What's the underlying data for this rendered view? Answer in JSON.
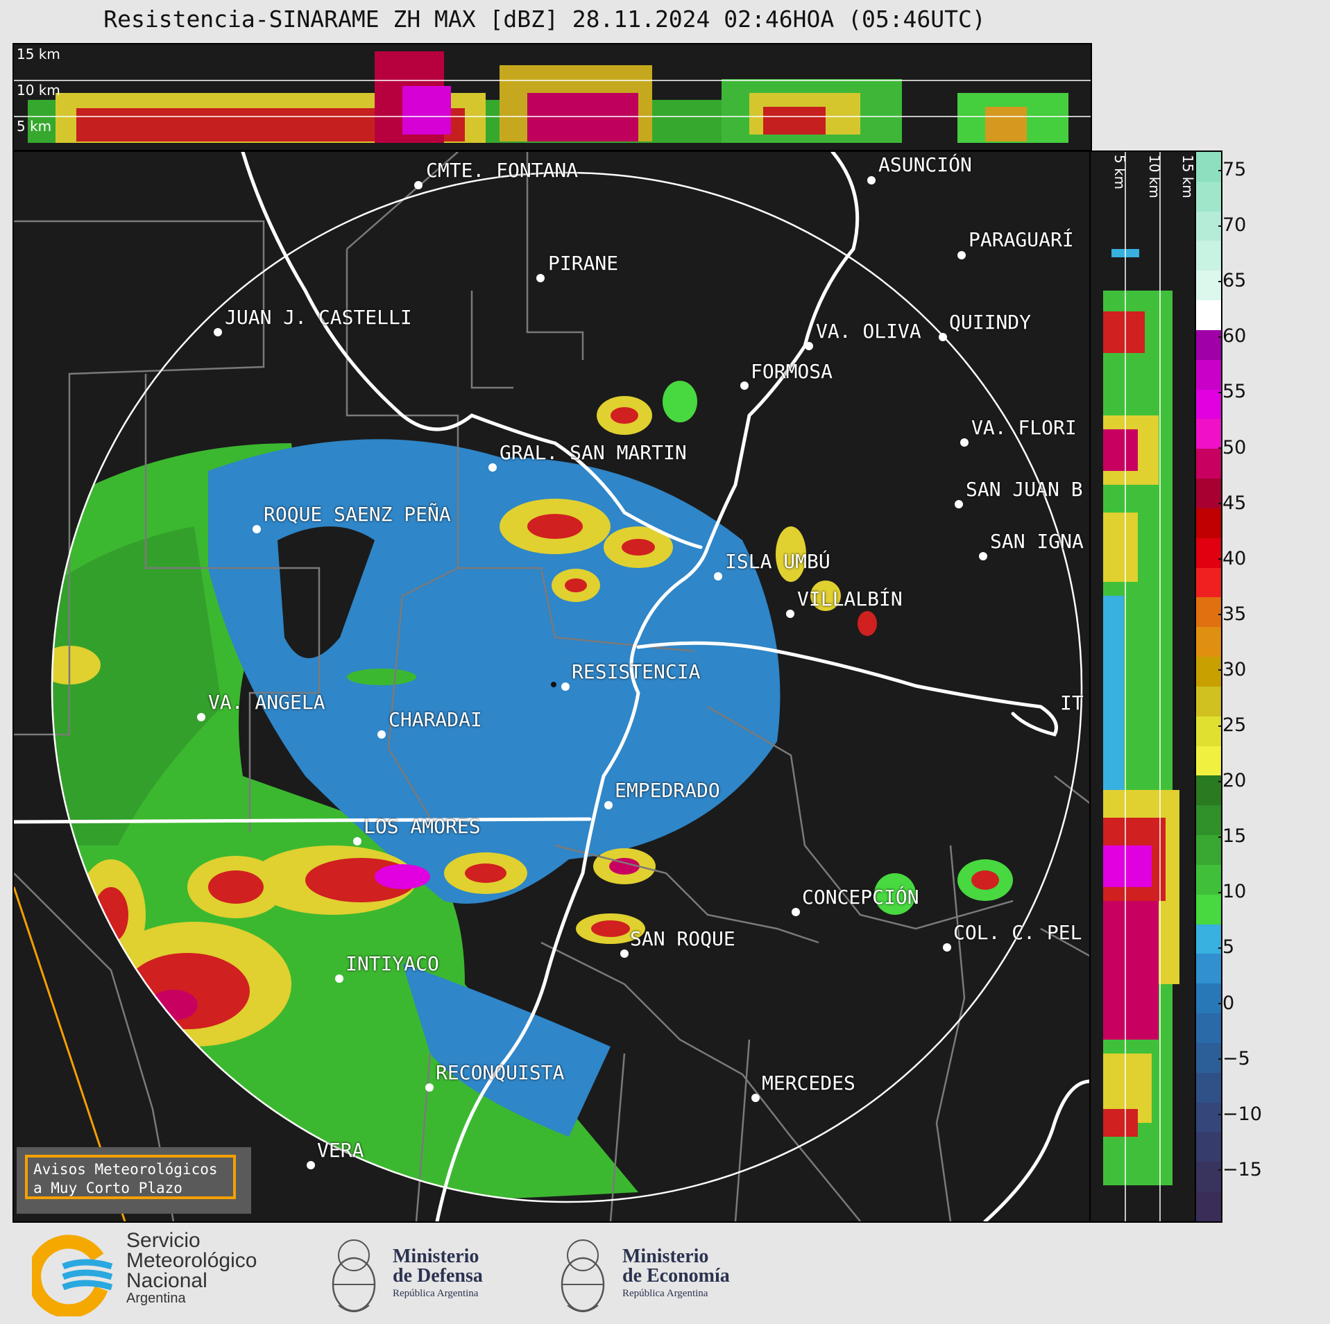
{
  "title": "Resistencia-SINARAME ZH MAX [dBZ] 28.11.2024 02:46HOA (05:46UTC)",
  "xsec_top_labels": [
    "15 km",
    "10 km",
    "5 km"
  ],
  "xsec_right_labels": [
    "5 km",
    "10 km",
    "15 km"
  ],
  "cities": [
    {
      "id": "cmte-fontana",
      "name": "CMTE. FONTANA"
    },
    {
      "id": "asuncion",
      "name": "ASUNCIÓN"
    },
    {
      "id": "paraguari",
      "name": "PARAGUARÍ"
    },
    {
      "id": "pirane",
      "name": "PIRANE"
    },
    {
      "id": "juan-castelli",
      "name": "JUAN J. CASTELLI"
    },
    {
      "id": "va-oliva",
      "name": "VA. OLIVA"
    },
    {
      "id": "quiindy",
      "name": "QUIINDY"
    },
    {
      "id": "formosa",
      "name": "FORMOSA"
    },
    {
      "id": "va-florida",
      "name": "VA. FLORI"
    },
    {
      "id": "gral-san-martin",
      "name": "GRAL. SAN MARTIN"
    },
    {
      "id": "san-juan",
      "name": "SAN JUAN B"
    },
    {
      "id": "roque-saenz-pena",
      "name": "ROQUE SAENZ PEÑA"
    },
    {
      "id": "san-ignacio",
      "name": "SAN IGNA"
    },
    {
      "id": "isla-umbu",
      "name": "ISLA UMBÚ"
    },
    {
      "id": "villalbin",
      "name": "VILLALBÍN"
    },
    {
      "id": "resistencia",
      "name": "RESISTENCIA"
    },
    {
      "id": "ita",
      "name": "IT"
    },
    {
      "id": "va-angela",
      "name": "VA. ANGELA"
    },
    {
      "id": "charadai",
      "name": "CHARADAI"
    },
    {
      "id": "empedrado",
      "name": "EMPEDRADO"
    },
    {
      "id": "los-amores",
      "name": "LOS AMORES"
    },
    {
      "id": "concepcion",
      "name": "CONCEPCIÓN"
    },
    {
      "id": "san-roque",
      "name": "SAN ROQUE"
    },
    {
      "id": "col-pellegrini",
      "name": "COL. C. PEL"
    },
    {
      "id": "intiyaco",
      "name": "INTIYACO"
    },
    {
      "id": "reconquista",
      "name": "RECONQUISTA"
    },
    {
      "id": "mercedes",
      "name": "MERCEDES"
    },
    {
      "id": "vera",
      "name": "VERA"
    }
  ],
  "colorbar": {
    "ticks": [
      75,
      70,
      65,
      60,
      55,
      50,
      45,
      40,
      35,
      30,
      25,
      20,
      15,
      10,
      5,
      0,
      "−5",
      "−10",
      "−15"
    ],
    "colors": [
      "#8ddfc0",
      "#9fe6cb",
      "#b4ecd7",
      "#c8f2e2",
      "#dcf7ec",
      "#ffffff",
      "#a000a8",
      "#c800c8",
      "#e000e0",
      "#f010c8",
      "#c80060",
      "#a80030",
      "#c00000",
      "#e00010",
      "#f02020",
      "#e07010",
      "#e09010",
      "#c8a000",
      "#d0c020",
      "#e0e030",
      "#f0f040",
      "#2a7a20",
      "#30902a",
      "#38a832",
      "#40c03a",
      "#48d840",
      "#38b0e0",
      "#3090d0",
      "#2878b8",
      "#2a6aa8",
      "#2c5e98",
      "#305088",
      "#34467a",
      "#363c6c",
      "#38345e",
      "#3a2e58"
    ]
  },
  "avisos": {
    "line1": "Avisos Meteorológicos",
    "line2": "a Muy Corto Plazo"
  },
  "logos": {
    "smn_line1": "Servicio",
    "smn_line2": "Meteorológico",
    "smn_line3": "Nacional",
    "smn_line4": "Argentina",
    "defensa_line1": "Ministerio",
    "defensa_line2": "de Defensa",
    "defensa_line3": "República Argentina",
    "economia_line1": "Ministerio",
    "economia_line2": "de Economía",
    "economia_line3": "República Argentina"
  }
}
